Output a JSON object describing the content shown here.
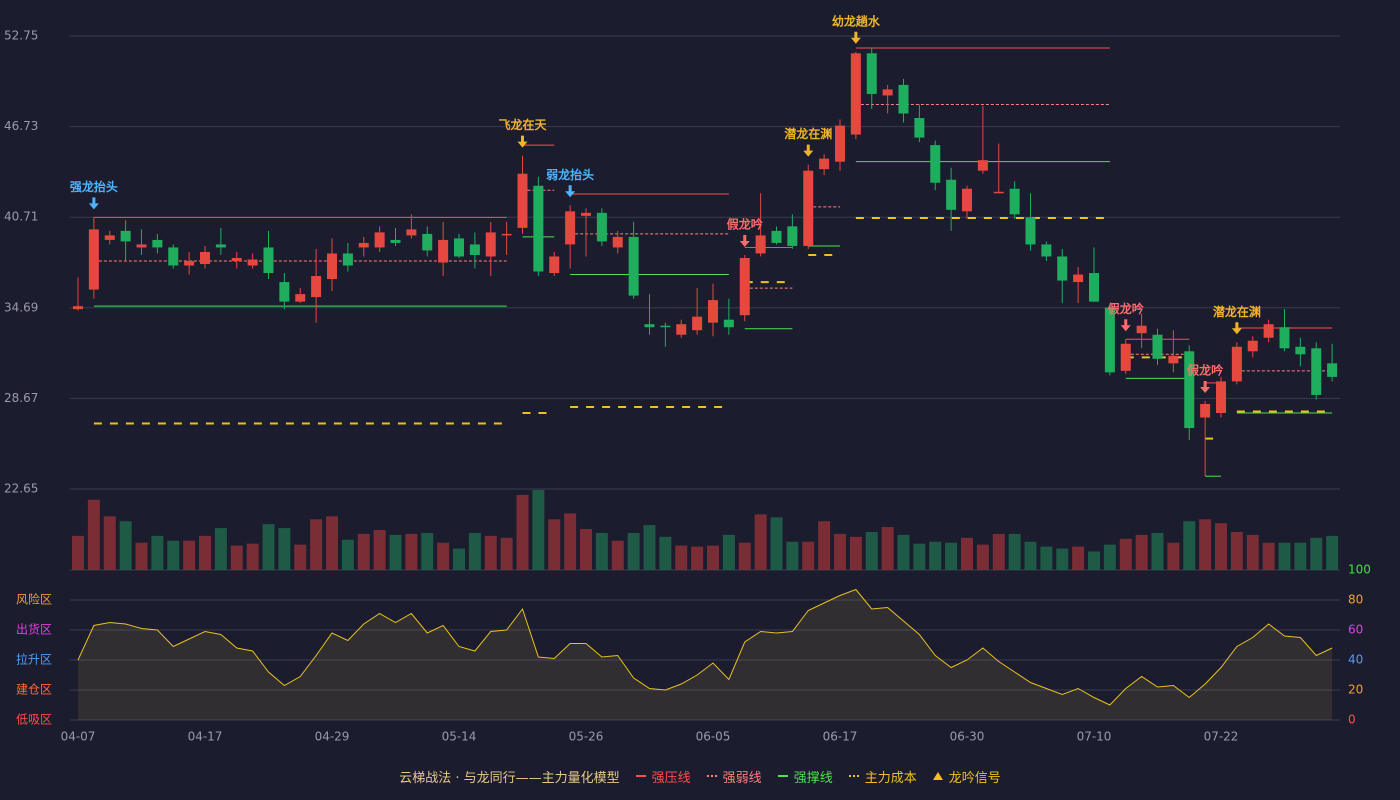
{
  "chart_data": {
    "type": "candlestick",
    "ylim": [
      22.65,
      52.75
    ],
    "yticks": [
      22.65,
      28.67,
      34.69,
      40.71,
      46.73,
      52.75
    ],
    "grid": true,
    "up_color": "#e5483e",
    "down_color": "#1fae5e",
    "volume_up_color": "#7b2d36",
    "volume_down_color": "#1e5a45",
    "categories": [
      "04-07",
      null,
      null,
      null,
      null,
      null,
      null,
      null,
      "04-17",
      null,
      null,
      null,
      null,
      null,
      null,
      null,
      "04-29",
      null,
      null,
      null,
      null,
      null,
      null,
      null,
      "05-14",
      null,
      null,
      null,
      null,
      null,
      null,
      null,
      "05-26",
      null,
      null,
      null,
      null,
      null,
      null,
      null,
      "06-05",
      null,
      null,
      null,
      null,
      null,
      null,
      null,
      "06-17",
      null,
      null,
      null,
      null,
      null,
      null,
      null,
      "06-30",
      null,
      null,
      null,
      null,
      null,
      null,
      null,
      "07-10",
      null,
      null,
      null,
      null,
      null,
      null,
      null,
      "07-22",
      null,
      null,
      null,
      null,
      null,
      null,
      null
    ],
    "open": [
      34.6,
      35.9,
      39.2,
      39.8,
      38.7,
      39.2,
      38.7,
      37.5,
      37.6,
      38.9,
      37.8,
      37.5,
      38.7,
      36.4,
      35.1,
      35.4,
      36.6,
      38.3,
      38.7,
      38.7,
      39.2,
      39.5,
      39.6,
      37.7,
      39.3,
      38.9,
      38.1,
      39.5,
      40.0,
      42.8,
      37.0,
      38.9,
      40.8,
      41.0,
      38.7,
      39.4,
      33.6,
      33.5,
      32.9,
      33.2,
      33.7,
      33.9,
      34.2,
      38.3,
      39.8,
      40.1,
      38.8,
      43.9,
      44.4,
      46.2,
      51.6,
      48.8,
      49.5,
      47.3,
      45.5,
      43.2,
      41.1,
      43.8,
      42.3,
      42.6,
      40.7,
      38.9,
      38.1,
      36.4,
      37.0,
      34.7,
      30.5,
      33.0,
      32.9,
      31.0,
      31.8,
      27.4,
      27.7,
      29.8,
      31.8,
      32.7,
      33.4,
      32.1,
      32.0,
      31.0
    ],
    "high": [
      36.7,
      40.7,
      39.8,
      40.5,
      39.9,
      39.6,
      38.9,
      38.4,
      38.8,
      40.0,
      38.4,
      38.3,
      39.8,
      37.0,
      36.0,
      38.6,
      39.3,
      39.0,
      39.4,
      40.1,
      40.0,
      40.9,
      40.1,
      40.4,
      39.6,
      39.7,
      40.4,
      40.4,
      44.8,
      43.4,
      38.4,
      41.5,
      41.3,
      41.3,
      39.8,
      40.4,
      35.6,
      33.7,
      33.9,
      36.0,
      36.3,
      35.3,
      38.2,
      42.3,
      40.1,
      40.9,
      44.2,
      44.9,
      47.2,
      51.7,
      52.0,
      49.5,
      49.9,
      48.2,
      45.8,
      44.0,
      42.8,
      48.1,
      45.6,
      43.1,
      42.3,
      39.1,
      38.6,
      37.4,
      38.7,
      34.8,
      32.6,
      34.3,
      33.3,
      33.2,
      32.2,
      28.5,
      30.1,
      32.4,
      32.8,
      33.9,
      34.6,
      32.7,
      32.4,
      32.3
    ],
    "low": [
      34.5,
      35.3,
      38.9,
      37.8,
      38.2,
      38.3,
      37.3,
      36.9,
      37.3,
      38.2,
      37.3,
      37.3,
      36.6,
      34.6,
      35.0,
      33.7,
      35.8,
      37.1,
      38.1,
      38.4,
      38.8,
      39.3,
      38.1,
      36.8,
      38.0,
      37.3,
      36.8,
      38.2,
      39.6,
      36.8,
      36.8,
      37.3,
      38.1,
      38.8,
      38.3,
      35.3,
      32.9,
      32.1,
      32.7,
      32.9,
      32.8,
      32.9,
      33.8,
      38.1,
      38.9,
      38.6,
      38.6,
      43.5,
      43.8,
      45.9,
      47.9,
      47.6,
      47.0,
      45.7,
      42.5,
      39.8,
      40.6,
      43.6,
      42.3,
      40.6,
      38.5,
      37.8,
      35.0,
      35.0,
      35.1,
      30.2,
      30.3,
      32.0,
      30.9,
      30.4,
      25.9,
      23.5,
      27.4,
      29.6,
      31.4,
      32.4,
      31.8,
      30.8,
      28.6,
      29.8
    ],
    "close": [
      34.8,
      39.9,
      39.5,
      39.1,
      38.9,
      38.7,
      37.5,
      37.8,
      38.4,
      38.7,
      38.0,
      37.9,
      37.0,
      35.1,
      35.6,
      36.8,
      38.3,
      37.5,
      39.0,
      39.7,
      39.0,
      39.9,
      38.5,
      39.2,
      38.1,
      38.2,
      39.7,
      39.6,
      43.6,
      37.1,
      38.1,
      41.1,
      41.0,
      39.1,
      39.4,
      35.5,
      33.4,
      33.4,
      33.6,
      34.1,
      35.2,
      33.4,
      38.0,
      39.5,
      39.0,
      38.8,
      43.8,
      44.6,
      46.8,
      51.6,
      48.9,
      49.2,
      47.6,
      46.0,
      43.0,
      41.2,
      42.6,
      44.5,
      42.4,
      40.9,
      38.9,
      38.1,
      36.5,
      36.9,
      35.1,
      30.4,
      32.3,
      33.5,
      31.3,
      31.5,
      26.7,
      28.3,
      29.8,
      32.1,
      32.5,
      33.6,
      32.0,
      31.6,
      28.9,
      30.1
    ],
    "volume": [
      35,
      72,
      55,
      50,
      28,
      35,
      30,
      30,
      35,
      43,
      25,
      27,
      47,
      43,
      26,
      52,
      55,
      31,
      37,
      41,
      36,
      37,
      38,
      28,
      22,
      38,
      35,
      33,
      77,
      82,
      52,
      58,
      42,
      38,
      30,
      38,
      46,
      34,
      25,
      24,
      25,
      36,
      28,
      57,
      54,
      29,
      29,
      50,
      37,
      34,
      39,
      44,
      36,
      27,
      29,
      28,
      33,
      26,
      37,
      37,
      29,
      24,
      22,
      24,
      19,
      26,
      32,
      36,
      38,
      28,
      50,
      52,
      48,
      39,
      36,
      28,
      28,
      28,
      33,
      35
    ],
    "levels": [
      {
        "from": 1,
        "to": 27,
        "values": [
          40.7,
          37.8,
          34.8,
          27.0
        ]
      },
      {
        "from": 28,
        "to": 30,
        "values": [
          45.5,
          42.5,
          39.4,
          27.7
        ]
      },
      {
        "from": 31,
        "to": 41,
        "values": [
          42.25,
          39.6,
          36.9,
          28.1
        ]
      },
      {
        "from": 42,
        "to": 45,
        "values": [
          38.7,
          36.0,
          33.3,
          36.4
        ]
      },
      {
        "from": 46,
        "to": 48,
        "values": [
          null,
          41.4,
          38.8,
          38.2
        ]
      },
      {
        "from": 49,
        "to": 65,
        "values": [
          51.95,
          48.2,
          44.4,
          40.66
        ]
      },
      {
        "from": 66,
        "to": 70,
        "values": [
          32.6,
          31.6,
          30.0,
          31.4
        ]
      },
      {
        "from": 71,
        "to": 72,
        "values": [
          29.7,
          null,
          23.5,
          26.0
        ]
      },
      {
        "from": 73,
        "to": 79,
        "values": [
          33.35,
          30.5,
          27.7,
          27.8
        ]
      }
    ],
    "signals": [
      {
        "index": 1,
        "label": "强龙抬头",
        "color": "#4fb3ff"
      },
      {
        "index": 28,
        "label": "飞龙在天",
        "color": "#f0b429"
      },
      {
        "index": 31,
        "label": "弱龙抬头",
        "color": "#4fb3ff"
      },
      {
        "index": 42,
        "label": "假龙吟",
        "color": "#ff6b6b"
      },
      {
        "index": 46,
        "label": "潜龙在渊",
        "color": "#f0b429"
      },
      {
        "index": 49,
        "label": "幼龙趟水",
        "color": "#f0b429"
      },
      {
        "index": 66,
        "label": "假龙吟",
        "color": "#ff6b6b"
      },
      {
        "index": 71,
        "label": "假龙吟",
        "color": "#ff6b6b"
      },
      {
        "index": 73,
        "label": "潜龙在渊",
        "color": "#f0b429"
      }
    ],
    "indicator": {
      "color": "#e8c020",
      "ylim": [
        0,
        100
      ],
      "yticks": [
        0,
        20,
        40,
        60,
        80,
        100
      ],
      "ytick_colors": [
        "#ff4d4d",
        "#f0a030",
        "#4f9dff",
        "#e040e0",
        "#f0a030",
        "#40e040"
      ],
      "zones": [
        {
          "label": "风险区",
          "value": 80,
          "color": "#f0a030"
        },
        {
          "label": "出货区",
          "value": 60,
          "color": "#e040e0"
        },
        {
          "label": "拉升区",
          "value": 40,
          "color": "#4f9dff"
        },
        {
          "label": "建仓区",
          "value": 20,
          "color": "#ff6a3d"
        },
        {
          "label": "低吸区",
          "value": 0,
          "color": "#ff4d4d"
        }
      ],
      "values": [
        40,
        63,
        65,
        64,
        61,
        60,
        49,
        54,
        59,
        57,
        48,
        46,
        32,
        23,
        29,
        43,
        58,
        53,
        64,
        71,
        65,
        71,
        58,
        63,
        49,
        46,
        59,
        60,
        74,
        42,
        41,
        51,
        51,
        42,
        43,
        28,
        21,
        20,
        24,
        30,
        38,
        27,
        52,
        59,
        58,
        59,
        73,
        78,
        83,
        87,
        74,
        75,
        66,
        57,
        43,
        35,
        40,
        48,
        39,
        32,
        25,
        21,
        17,
        21,
        15,
        10,
        21,
        29,
        22,
        23,
        15,
        24,
        35,
        49,
        55,
        64,
        56,
        55,
        43,
        48
      ]
    },
    "legend": {
      "title": "云梯战法 · 与龙同行——主力量化模型",
      "items": [
        {
          "label": "强压线",
          "color": "#ff4d4d",
          "style": "solid"
        },
        {
          "label": "强弱线",
          "color": "#ff8080",
          "style": "dashed"
        },
        {
          "label": "强撑线",
          "color": "#50e050",
          "style": "solid"
        },
        {
          "label": "主力成本",
          "color": "#f0c020",
          "style": "dashed"
        },
        {
          "label": "龙吟信号",
          "color": "#f0c020",
          "style": "triangle"
        }
      ]
    }
  }
}
